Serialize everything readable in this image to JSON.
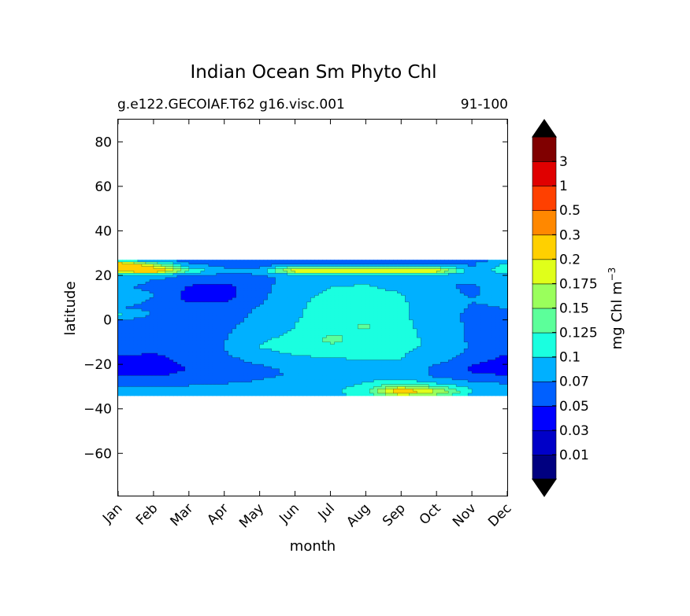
{
  "chart_data": {
    "type": "heatmap",
    "title": "Indian Ocean Sm Phyto Chl",
    "subtitle_left": "g.e122.GECOIAF.T62 g16.visc.001",
    "subtitle_right": "91-100",
    "xlabel": "month",
    "ylabel": "latitude",
    "x_categories": [
      "Jan",
      "Feb",
      "Mar",
      "Apr",
      "May",
      "Jun",
      "Jul",
      "Aug",
      "Sep",
      "Oct",
      "Nov",
      "Dec"
    ],
    "x_range": [
      1,
      12
    ],
    "y_ticks": [
      80,
      60,
      40,
      20,
      0,
      -20,
      -40,
      -60
    ],
    "y_tick_labels": [
      "80",
      "60",
      "40",
      "20",
      "0",
      "−20",
      "−40",
      "−60"
    ],
    "y_range": [
      -79,
      90
    ],
    "data_lat_range": [
      -34,
      27
    ],
    "colorbar": {
      "label": "mg Chl m",
      "label_exponent": "−3",
      "levels": [
        0,
        0.01,
        0.03,
        0.05,
        0.07,
        0.1,
        0.125,
        0.15,
        0.175,
        0.2,
        0.3,
        0.5,
        1,
        3,
        5
      ],
      "tick_labels": [
        "0.01",
        "0.03",
        "0.05",
        "0.07",
        "0.1",
        "0.125",
        "0.15",
        "0.175",
        "0.2",
        "0.3",
        "0.5",
        "1",
        "3"
      ],
      "colors": [
        "#000080",
        "#0000c8",
        "#0000ff",
        "#0060ff",
        "#00b0ff",
        "#1affe0",
        "#5cff9a",
        "#9aff5c",
        "#e0ff1a",
        "#ffd000",
        "#ff8800",
        "#ff4000",
        "#e00000",
        "#800000"
      ],
      "extend_colors": [
        "#000000",
        "#000000"
      ]
    },
    "latitudes": [
      27,
      25,
      22,
      20,
      18,
      15,
      12,
      10,
      8,
      5,
      3,
      0,
      -3,
      -5,
      -8,
      -10,
      -12,
      -15,
      -18,
      -20,
      -22,
      -25,
      -28,
      -30,
      -32,
      -34
    ],
    "values": [
      [
        0.065,
        0.065,
        0.06,
        0.06,
        0.06,
        0.055,
        0.055,
        0.055,
        0.06,
        0.06,
        0.065,
        0.065
      ],
      [
        0.26,
        0.16,
        0.07,
        0.06,
        0.06,
        0.065,
        0.06,
        0.06,
        0.06,
        0.06,
        0.065,
        0.11
      ],
      [
        0.23,
        0.25,
        0.13,
        0.08,
        0.075,
        0.21,
        0.21,
        0.21,
        0.21,
        0.21,
        0.08,
        0.12
      ],
      [
        0.09,
        0.08,
        0.068,
        0.062,
        0.07,
        0.075,
        0.085,
        0.088,
        0.08,
        0.075,
        0.078,
        0.088
      ],
      [
        0.08,
        0.07,
        0.062,
        0.055,
        0.062,
        0.08,
        0.09,
        0.095,
        0.085,
        0.07,
        0.072,
        0.082
      ],
      [
        0.072,
        0.066,
        0.048,
        0.045,
        0.062,
        0.085,
        0.1,
        0.102,
        0.095,
        0.072,
        0.068,
        0.078
      ],
      [
        0.075,
        0.07,
        0.045,
        0.042,
        0.063,
        0.088,
        0.105,
        0.105,
        0.1,
        0.075,
        0.068,
        0.075
      ],
      [
        0.078,
        0.07,
        0.044,
        0.044,
        0.065,
        0.09,
        0.11,
        0.108,
        0.102,
        0.078,
        0.07,
        0.075
      ],
      [
        0.075,
        0.068,
        0.05,
        0.05,
        0.068,
        0.092,
        0.112,
        0.11,
        0.104,
        0.08,
        0.07,
        0.072
      ],
      [
        0.07,
        0.066,
        0.062,
        0.062,
        0.072,
        0.094,
        0.115,
        0.114,
        0.105,
        0.08,
        0.068,
        0.07
      ],
      [
        0.11,
        0.065,
        0.065,
        0.064,
        0.072,
        0.095,
        0.116,
        0.118,
        0.106,
        0.08,
        0.066,
        0.068
      ],
      [
        0.068,
        0.064,
        0.064,
        0.065,
        0.074,
        0.098,
        0.118,
        0.122,
        0.108,
        0.08,
        0.066,
        0.066
      ],
      [
        0.062,
        0.062,
        0.063,
        0.066,
        0.078,
        0.1,
        0.118,
        0.128,
        0.11,
        0.082,
        0.066,
        0.064
      ],
      [
        0.06,
        0.06,
        0.062,
        0.066,
        0.082,
        0.102,
        0.122,
        0.124,
        0.112,
        0.085,
        0.066,
        0.062
      ],
      [
        0.06,
        0.06,
        0.062,
        0.068,
        0.09,
        0.112,
        0.128,
        0.12,
        0.112,
        0.088,
        0.066,
        0.06
      ],
      [
        0.058,
        0.058,
        0.062,
        0.07,
        0.098,
        0.116,
        0.128,
        0.12,
        0.11,
        0.09,
        0.066,
        0.058
      ],
      [
        0.056,
        0.056,
        0.06,
        0.07,
        0.102,
        0.112,
        0.118,
        0.112,
        0.108,
        0.092,
        0.066,
        0.056
      ],
      [
        0.052,
        0.05,
        0.058,
        0.068,
        0.09,
        0.104,
        0.106,
        0.104,
        0.102,
        0.09,
        0.064,
        0.05
      ],
      [
        0.048,
        0.045,
        0.054,
        0.064,
        0.076,
        0.092,
        0.098,
        0.1,
        0.1,
        0.08,
        0.055,
        0.046
      ],
      [
        0.046,
        0.044,
        0.052,
        0.062,
        0.07,
        0.082,
        0.094,
        0.098,
        0.096,
        0.07,
        0.05,
        0.046
      ],
      [
        0.045,
        0.044,
        0.05,
        0.06,
        0.066,
        0.074,
        0.086,
        0.09,
        0.09,
        0.064,
        0.048,
        0.045
      ],
      [
        0.05,
        0.048,
        0.054,
        0.062,
        0.066,
        0.072,
        0.08,
        0.085,
        0.085,
        0.064,
        0.052,
        0.05
      ],
      [
        0.062,
        0.062,
        0.064,
        0.068,
        0.072,
        0.078,
        0.085,
        0.1,
        0.115,
        0.09,
        0.07,
        0.066
      ],
      [
        0.07,
        0.07,
        0.072,
        0.075,
        0.078,
        0.082,
        0.09,
        0.108,
        0.16,
        0.13,
        0.09,
        0.075
      ],
      [
        0.08,
        0.078,
        0.08,
        0.082,
        0.084,
        0.086,
        0.095,
        0.115,
        0.24,
        0.18,
        0.1,
        0.085
      ],
      [
        0.08,
        0.08,
        0.08,
        0.082,
        0.084,
        0.086,
        0.092,
        0.105,
        0.16,
        0.14,
        0.095,
        0.085
      ]
    ]
  }
}
